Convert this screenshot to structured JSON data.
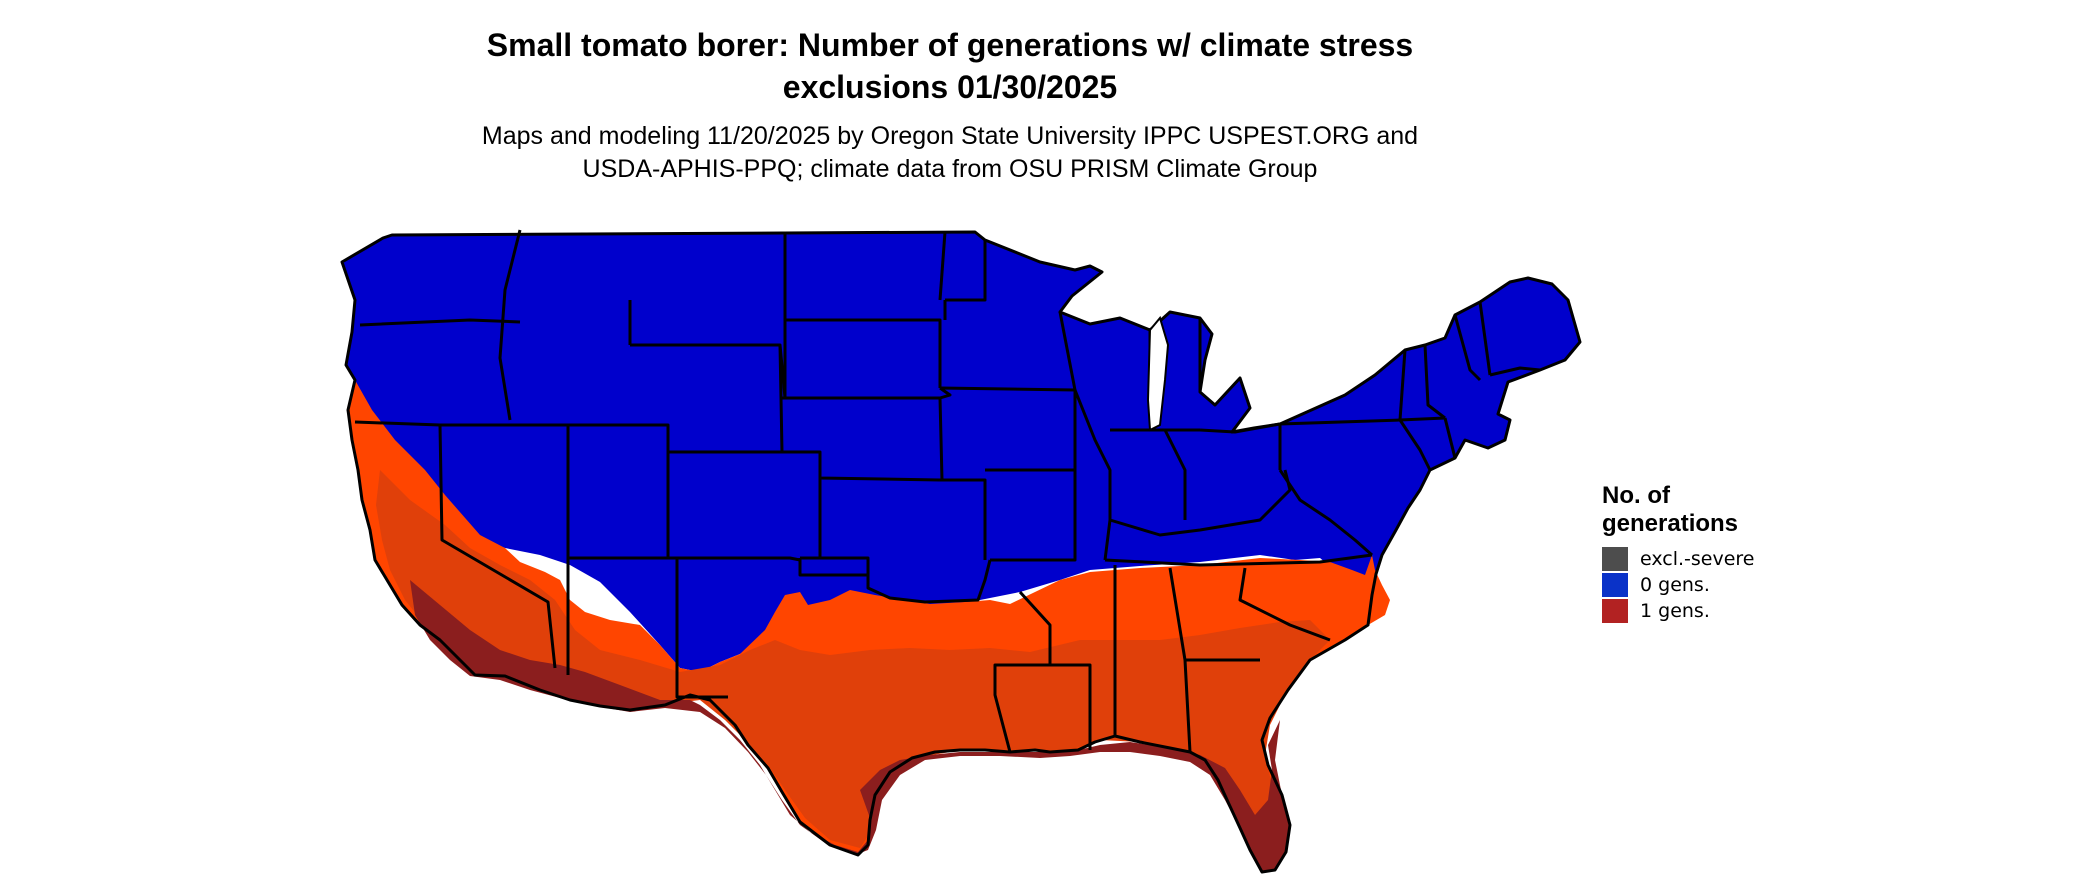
{
  "title_line1": "Small tomato borer: Number of generations w/ climate stress",
  "title_line2": "exclusions 01/30/2025",
  "subtitle_line1": "Maps and modeling 11/20/2025 by Oregon State University IPPC USPEST.ORG and",
  "subtitle_line2": "USDA-APHIS-PPQ; climate data from OSU PRISM Climate Group",
  "legend": {
    "title_line1": "No. of",
    "title_line2": "generations",
    "items": [
      {
        "label": "excl.-severe",
        "color": "#4d4d4d"
      },
      {
        "label": "0 gens.",
        "color": "#0a32c8"
      },
      {
        "label": "1 gens.",
        "color": "#b22222"
      }
    ]
  },
  "colors": {
    "zero_generations": "#0000cc",
    "one_generation_light": "#ff4500",
    "one_generation_mid": "#e0400a",
    "one_generation_dark": "#8b1e1e",
    "state_borders": "#000000"
  }
}
